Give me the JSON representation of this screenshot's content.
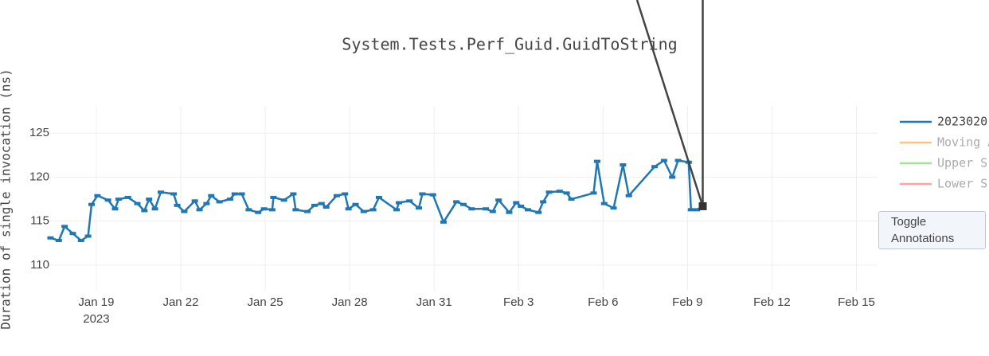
{
  "chart_data": {
    "type": "line",
    "title": "System.Tests.Perf_Guid.GuidToString",
    "y_label": "Duration of single invocation (ns)",
    "x": [
      "2023-01-17T09:00",
      "2023-01-17T16:00",
      "2023-01-17T21:00",
      "2023-01-18T04:00",
      "2023-01-18T11:00",
      "2023-01-18T17:00",
      "2023-01-18T20:00",
      "2023-01-19T01:00",
      "2023-01-19T10:00",
      "2023-01-19T16:00",
      "2023-01-19T19:00",
      "2023-01-20T03:00",
      "2023-01-20T11:00",
      "2023-01-20T17:00",
      "2023-01-20T21:00",
      "2023-01-21T02:00",
      "2023-01-21T07:00",
      "2023-01-21T18:00",
      "2023-01-21T21:00",
      "2023-01-22T03:00",
      "2023-01-22T12:00",
      "2023-01-22T16:00",
      "2023-01-22T22:00",
      "2023-01-23T02:00",
      "2023-01-23T09:00",
      "2023-01-23T18:00",
      "2023-01-23T22:00",
      "2023-01-24T04:00",
      "2023-01-24T10:00",
      "2023-01-24T18:00",
      "2023-01-24T23:00",
      "2023-01-25T06:00",
      "2023-01-25T07:00",
      "2023-01-25T16:00",
      "2023-01-26T00:00",
      "2023-01-26T02:00",
      "2023-01-26T12:00",
      "2023-01-26T18:00",
      "2023-01-27T00:00",
      "2023-01-27T04:00",
      "2023-01-27T13:00",
      "2023-01-27T20:00",
      "2023-01-27T23:00",
      "2023-01-28T05:00",
      "2023-01-28T12:00",
      "2023-01-28T20:00",
      "2023-01-29T01:00",
      "2023-01-29T16:00",
      "2023-01-29T18:00",
      "2023-01-30T03:00",
      "2023-01-30T11:00",
      "2023-01-30T14:00",
      "2023-01-30T23:00",
      "2023-01-31T08:00",
      "2023-01-31T19:00",
      "2023-02-01T01:00",
      "2023-02-01T08:00",
      "2023-02-01T20:00",
      "2023-02-02T02:00",
      "2023-02-02T07:00",
      "2023-02-02T16:00",
      "2023-02-02T22:00",
      "2023-02-03T02:00",
      "2023-02-03T08:00",
      "2023-02-03T17:00",
      "2023-02-03T21:00",
      "2023-02-04T02:00",
      "2023-02-04T11:00",
      "2023-02-04T17:00",
      "2023-02-04T21:00",
      "2023-02-05T16:00",
      "2023-02-05T19:00",
      "2023-02-06T01:00",
      "2023-02-06T09:00",
      "2023-02-06T17:00",
      "2023-02-06T22:00",
      "2023-02-07T20:00",
      "2023-02-08T04:00",
      "2023-02-08T11:00",
      "2023-02-08T16:00",
      "2023-02-09T01:00",
      "2023-02-09T03:00",
      "2023-02-09T08:00",
      "2023-02-09T13:00"
    ],
    "series": [
      {
        "name": "2023020",
        "color": "#1f77b4",
        "values": [
          113.1,
          112.8,
          114.4,
          113.6,
          112.8,
          113.3,
          116.9,
          117.9,
          117.4,
          116.4,
          117.5,
          117.7,
          117.0,
          116.2,
          117.5,
          116.4,
          118.3,
          118.1,
          116.8,
          116.1,
          117.3,
          116.3,
          117.0,
          117.9,
          117.2,
          117.5,
          118.1,
          118.1,
          116.3,
          116.0,
          116.4,
          116.3,
          117.7,
          117.4,
          118.1,
          116.3,
          116.1,
          116.8,
          117.0,
          116.6,
          117.9,
          118.1,
          116.4,
          116.9,
          116.1,
          116.3,
          117.7,
          116.3,
          117.1,
          117.3,
          116.5,
          118.1,
          118.0,
          114.9,
          117.2,
          116.9,
          116.4,
          116.4,
          116.1,
          117.4,
          116.0,
          117.1,
          116.7,
          116.3,
          116.0,
          117.2,
          118.3,
          118.4,
          118.2,
          117.5,
          118.2,
          121.8,
          117.0,
          116.5,
          121.4,
          117.9,
          121.2,
          121.9,
          120.0,
          121.9,
          121.7,
          116.3,
          116.3,
          116.7
        ]
      }
    ],
    "hidden_series": [
      {
        "name": "Moving A",
        "color": "#ffbb78"
      },
      {
        "name": "Upper S",
        "color": "#98df8a"
      },
      {
        "name": "Lower S",
        "color": "#ff9896"
      }
    ],
    "xlim": [
      "2023-01-17T08:00",
      "2023-02-15T18:00"
    ],
    "xticks": [
      {
        "value": "2023-01-19",
        "label": "Jan 19"
      },
      {
        "value": "2023-01-22",
        "label": "Jan 22"
      },
      {
        "value": "2023-01-25",
        "label": "Jan 25"
      },
      {
        "value": "2023-01-28",
        "label": "Jan 28"
      },
      {
        "value": "2023-01-31",
        "label": "Jan 31"
      },
      {
        "value": "2023-02-03",
        "label": "Feb 3"
      },
      {
        "value": "2023-02-06",
        "label": "Feb 6"
      },
      {
        "value": "2023-02-09",
        "label": "Feb 9"
      },
      {
        "value": "2023-02-12",
        "label": "Feb 12"
      },
      {
        "value": "2023-02-15",
        "label": "Feb 15"
      }
    ],
    "x_year": "2023",
    "ylim": [
      107.1,
      128.1
    ],
    "yticks": [
      110,
      115,
      120,
      125
    ],
    "grid": true,
    "button": "Toggle Annotations"
  }
}
